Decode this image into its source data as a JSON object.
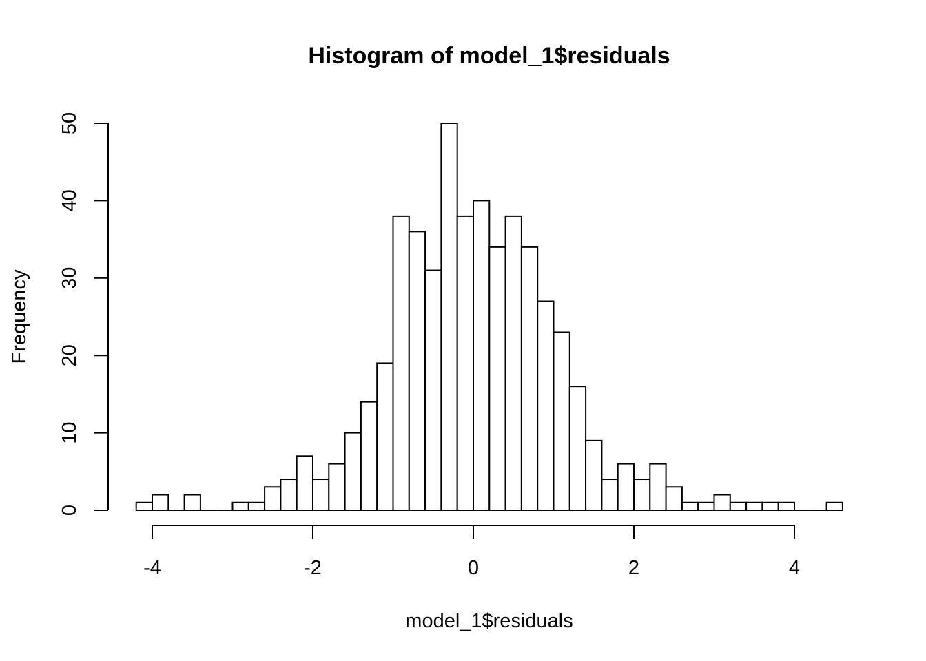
{
  "chart_data": {
    "type": "bar",
    "title": "Histogram of model_1$residuals",
    "xlabel": "model_1$residuals",
    "ylabel": "Frequency",
    "bin_width": 0.2,
    "bin_start": -4.2,
    "counts": [
      1,
      2,
      0,
      2,
      0,
      0,
      1,
      1,
      3,
      4,
      7,
      4,
      6,
      10,
      14,
      19,
      38,
      36,
      31,
      50,
      38,
      40,
      34,
      38,
      34,
      27,
      23,
      16,
      9,
      4,
      6,
      4,
      6,
      3,
      1,
      1,
      2,
      1,
      1,
      1,
      1,
      0,
      0,
      1
    ],
    "xlim": [
      -4.2,
      4.6
    ],
    "ylim": [
      0,
      50
    ],
    "x_ticks": [
      -4,
      -2,
      0,
      2,
      4
    ],
    "x_tick_labels": [
      "-4",
      "-2",
      "0",
      "2",
      "4"
    ],
    "y_ticks": [
      0,
      10,
      20,
      30,
      40,
      50
    ],
    "y_tick_labels": [
      "0",
      "10",
      "20",
      "30",
      "40",
      "50"
    ],
    "grid": false,
    "legend": "none",
    "colors": {
      "bar_fill": "#ffffff",
      "bar_stroke": "#000000",
      "background": "#ffffff"
    }
  }
}
